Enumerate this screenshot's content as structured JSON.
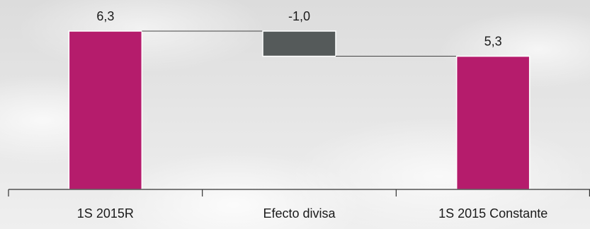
{
  "chart_data": {
    "type": "waterfall",
    "categories": [
      "1S 2015R",
      "Efecto divisa",
      "1S 2015 Constante"
    ],
    "values": [
      6.3,
      -1.0,
      5.3
    ],
    "value_labels": [
      "6,3",
      "-1,0",
      "5,3"
    ],
    "measure": [
      "absolute",
      "relative",
      "total"
    ],
    "colors": [
      "#b51c6c",
      "#555a5a",
      "#b51c6c"
    ]
  }
}
